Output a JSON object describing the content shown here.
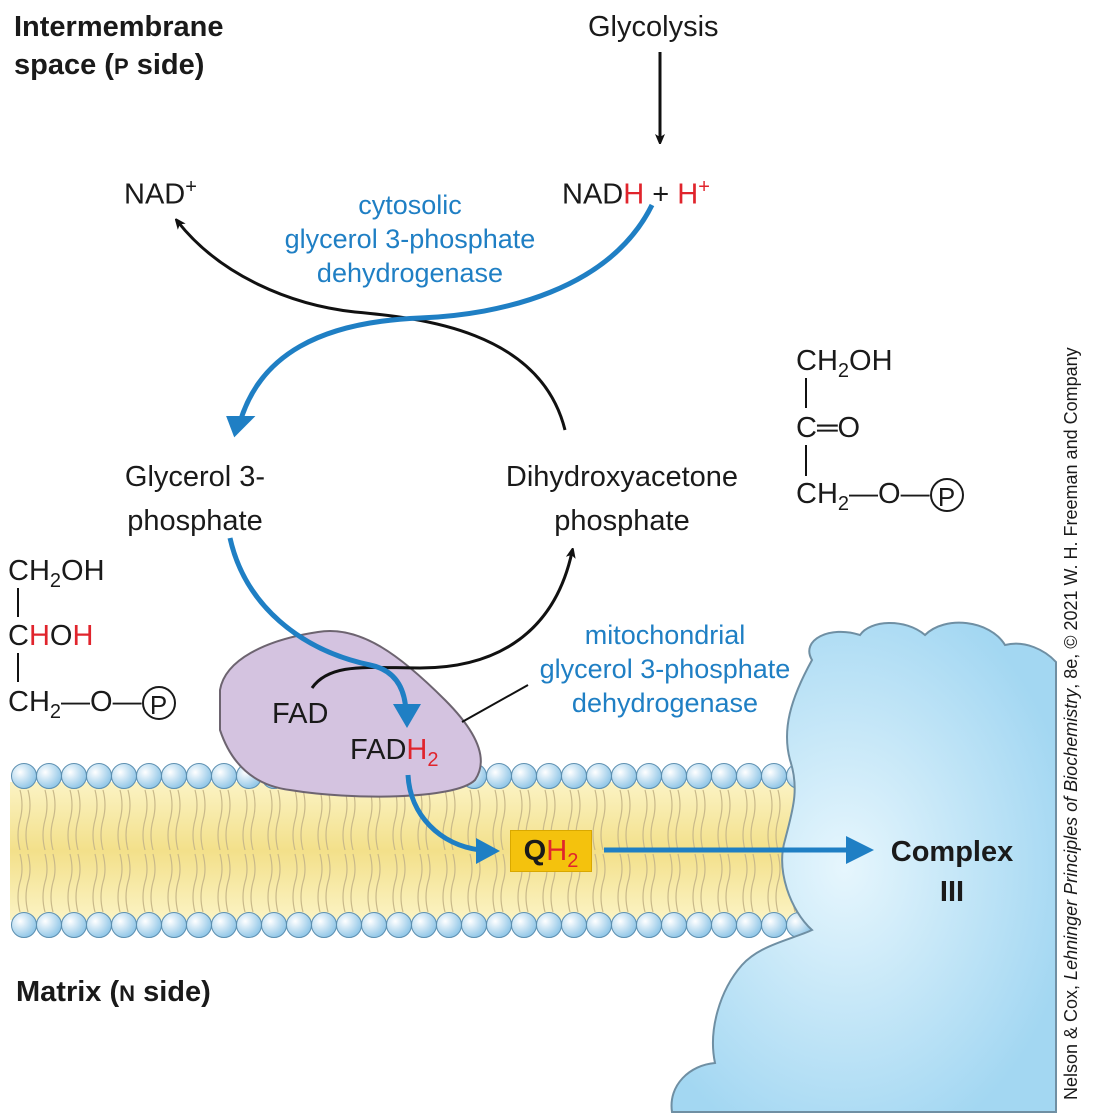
{
  "regions": {
    "p_side_line1": "Intermembrane",
    "p_side_line2_pre": "space (",
    "p_side_letter": "P",
    "p_side_post": " side)",
    "n_side_pre": "Matrix (",
    "n_side_letter": "N",
    "n_side_post": " side)"
  },
  "metabolites": {
    "glycolysis": "Glycolysis",
    "nad_plus": "NAD",
    "plus_sup": "+",
    "nadh_base": "NAD",
    "nadh_h": "H",
    "plus_sign": " + ",
    "h_ion": "H",
    "g3p_line1": "Glycerol 3-",
    "g3p_line2": "phosphate",
    "dhap_line1": "Dihydroxyacetone",
    "dhap_line2": "phosphate",
    "fad": "FAD",
    "fadh2_base": "FAD",
    "fadh2_h": "H",
    "sub2": "2",
    "qh2_q": "Q",
    "qh2_h": "H",
    "complex_line1": "Complex",
    "complex_line2": "III"
  },
  "enzymes": {
    "cytosolic_line1": "cytosolic",
    "cytosolic_line2": "glycerol 3-phosphate",
    "cytosolic_line3": "dehydrogenase",
    "mito_line1": "mitochondrial",
    "mito_line2": "glycerol 3-phosphate",
    "mito_line3": "dehydrogenase"
  },
  "structures": {
    "dhap_r1_a": "CH",
    "dhap_r1_b": "OH",
    "dhap_r2": "C═O",
    "dhap_r3_a": "CH",
    "dhap_r3_b": "—O—",
    "g3p_r1_a": "CH",
    "g3p_r1_b": "OH",
    "g3p_r2_c": "C",
    "g3p_r2_hoh": "HOH",
    "g3p_r3_a": "CH",
    "g3p_r3_b": "—O—",
    "phosphate": "P"
  },
  "credit": {
    "pre": "Nelson & Cox, ",
    "book": "Lehninger Principles of Biochemistry",
    "post": ", 8e, © 2021 W. H. Freeman and Company"
  },
  "colors": {
    "blue_arrow": "#1f7fc4",
    "red_highlight": "#e0242c",
    "enzyme_purple": "#d4c3e0",
    "complex_blue": "#a9dcf5",
    "membrane_yellow": "#f6e9a3",
    "head_blue": "#a8d4ee",
    "qh2_yellow": "#f4c20d"
  }
}
